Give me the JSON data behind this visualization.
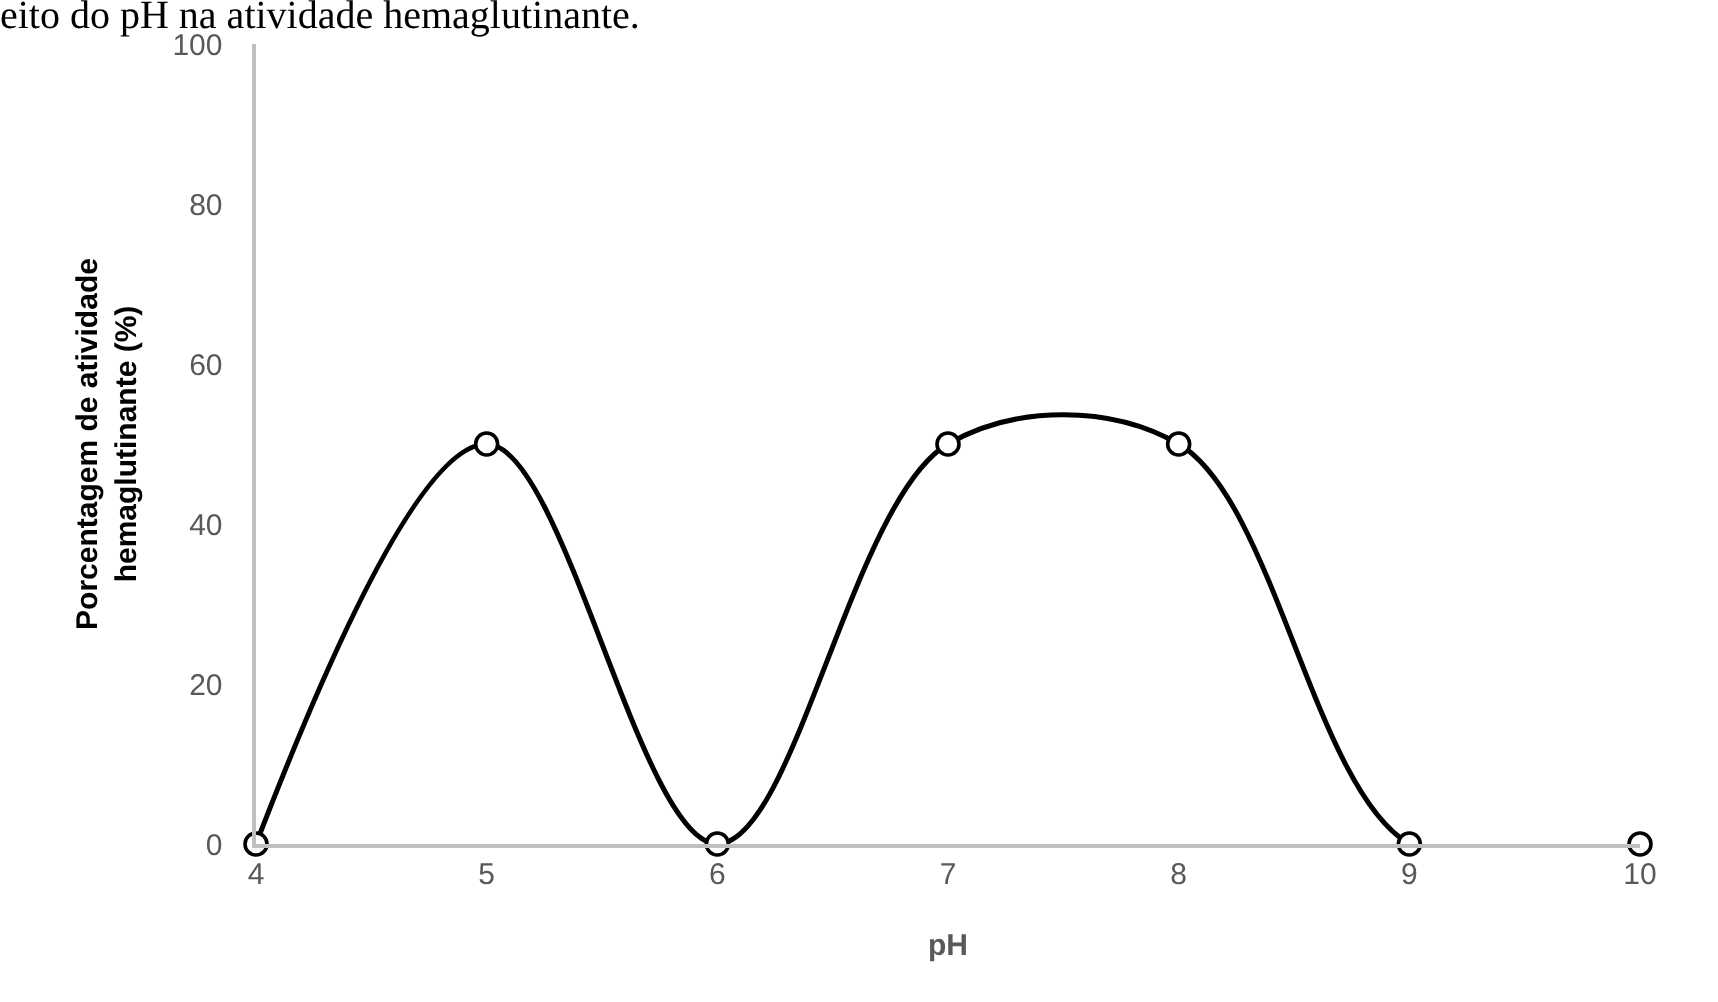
{
  "chart_data": {
    "type": "line",
    "title": "eito do pH na atividade hemaglutinante.",
    "xlabel": "pH",
    "ylabel": "Porcentagem de atividade\nhemaglutinante (%)",
    "x": [
      4,
      5,
      6,
      7,
      8,
      9,
      10
    ],
    "series": [
      {
        "color": "#000000",
        "values": [
          0,
          50,
          0,
          50,
          50,
          0,
          0
        ]
      }
    ],
    "xlim": [
      4,
      10
    ],
    "xticks": [
      4,
      5,
      6,
      7,
      8,
      9,
      10
    ],
    "ylim": [
      0,
      100
    ],
    "yticks": [
      0,
      20,
      40,
      60,
      80,
      100
    ],
    "grid": false,
    "marker": "circle",
    "line_style": "solid"
  }
}
